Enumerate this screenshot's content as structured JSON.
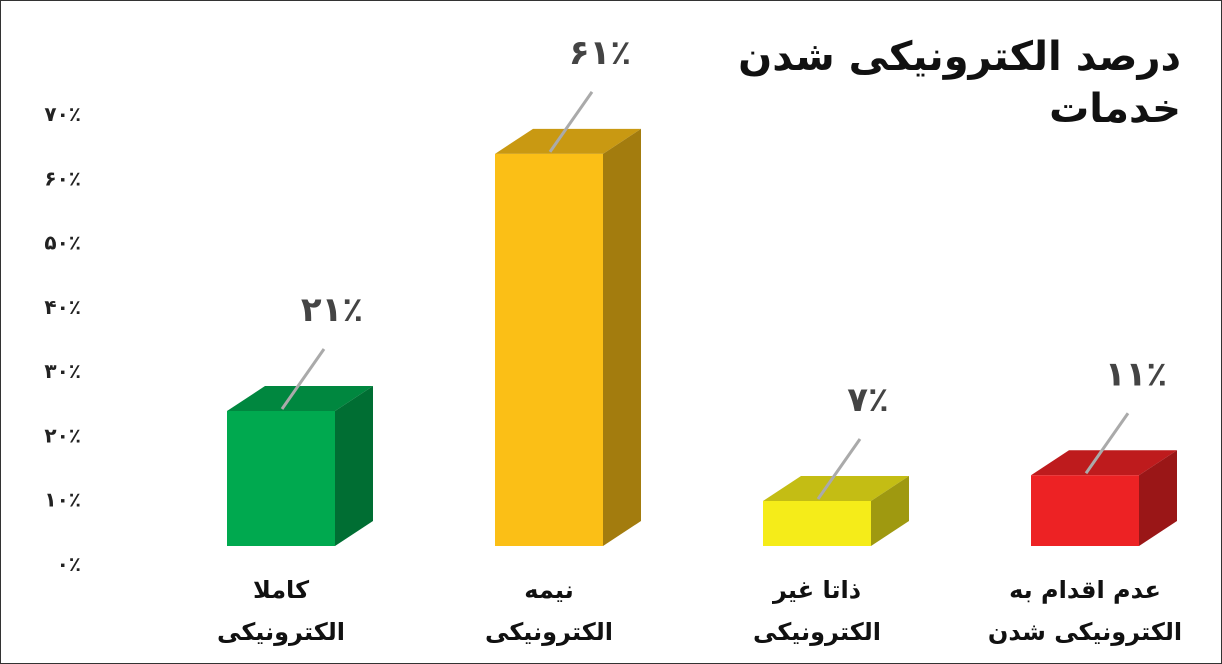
{
  "chart_data": {
    "type": "bar",
    "title": "درصد الکترونیکی شدن خدمات",
    "categories": [
      "کاملا الکترونیکی",
      "نیمه الکترونیکی",
      "ذاتا غیر الکترونیکی",
      "عدم اقدام به الکترونیکی شدن"
    ],
    "values": [
      21,
      61,
      7,
      11
    ],
    "value_labels": [
      "۲۱٪",
      "۶۱٪",
      "۷٪",
      "۱۱٪"
    ],
    "colors": [
      "#00a94f",
      "#fbbf16",
      "#f5ec19",
      "#ed2224"
    ],
    "ylim": [
      0,
      70
    ],
    "yticks": [
      {
        "value": 0,
        "label": "۰٪"
      },
      {
        "value": 10,
        "label": "۱۰٪"
      },
      {
        "value": 20,
        "label": "۲۰٪"
      },
      {
        "value": 30,
        "label": "۳۰٪"
      },
      {
        "value": 40,
        "label": "۴۰٪"
      },
      {
        "value": 50,
        "label": "۵۰٪"
      },
      {
        "value": 60,
        "label": "۶۰٪"
      },
      {
        "value": 70,
        "label": "۷۰٪"
      }
    ]
  }
}
